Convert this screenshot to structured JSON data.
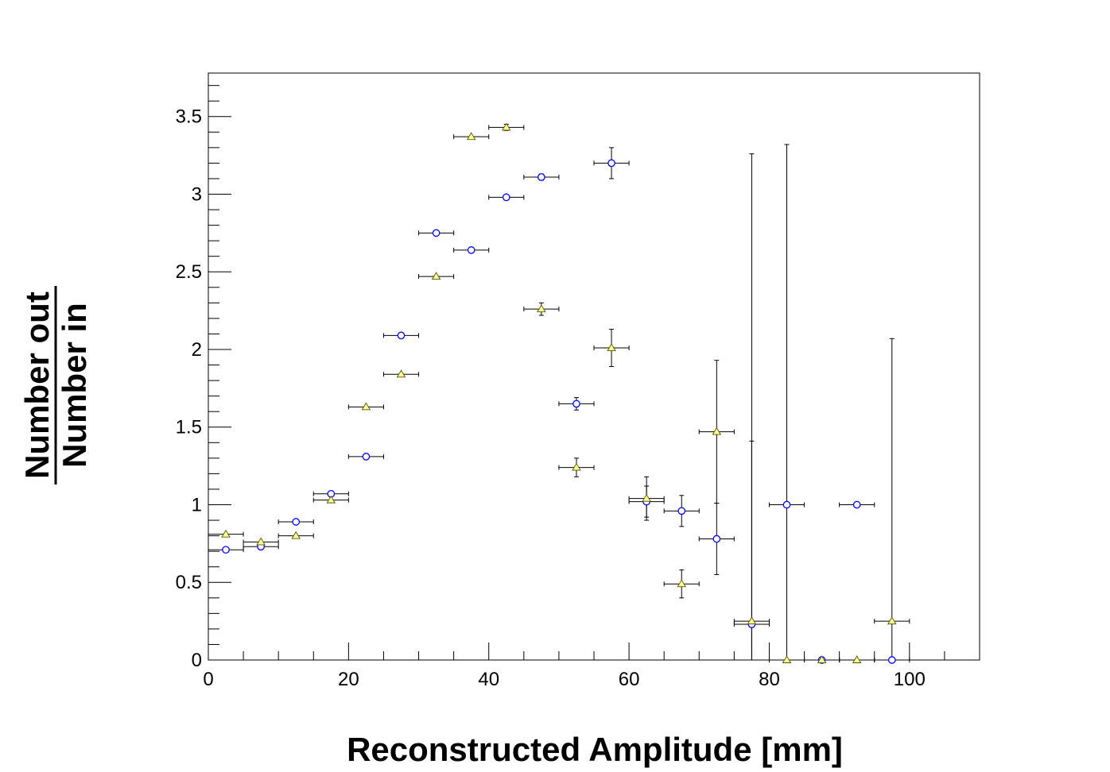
{
  "chart_data": {
    "type": "scatter",
    "xlabel": "Reconstructed Amplitude [mm]",
    "ylabel_numerator": "Number out",
    "ylabel_denominator": "Number in",
    "xlim": [
      0,
      110
    ],
    "ylim": [
      0,
      3.78
    ],
    "x_ticks": [
      0,
      20,
      40,
      60,
      80,
      100
    ],
    "y_ticks": [
      0,
      0.5,
      1,
      1.5,
      2,
      2.5,
      3,
      3.5
    ],
    "x_tick_labels": [
      "0",
      "20",
      "40",
      "60",
      "80",
      "100"
    ],
    "y_tick_labels": [
      "0",
      "0.5",
      "1",
      "1.5",
      "2",
      "2.5",
      "3",
      "3.5"
    ],
    "grid": false,
    "legend": "none",
    "bin_half_width": 2.5,
    "series": [
      {
        "marker": "open-circle",
        "color": "#0000ff",
        "points": [
          {
            "x": 2.5,
            "y": 0.71,
            "yerr": 0.0
          },
          {
            "x": 7.5,
            "y": 0.73,
            "yerr": 0.0
          },
          {
            "x": 12.5,
            "y": 0.89,
            "yerr": 0.0
          },
          {
            "x": 17.5,
            "y": 1.07,
            "yerr": 0.0
          },
          {
            "x": 22.5,
            "y": 1.31,
            "yerr": 0.0
          },
          {
            "x": 27.5,
            "y": 2.09,
            "yerr": 0.0
          },
          {
            "x": 32.5,
            "y": 2.75,
            "yerr": 0.0
          },
          {
            "x": 37.5,
            "y": 2.64,
            "yerr": 0.0
          },
          {
            "x": 42.5,
            "y": 2.98,
            "yerr": 0.0
          },
          {
            "x": 47.5,
            "y": 3.11,
            "yerr": 0.02
          },
          {
            "x": 52.5,
            "y": 1.65,
            "yerr": 0.04
          },
          {
            "x": 57.5,
            "y": 3.2,
            "yerr": 0.1
          },
          {
            "x": 62.5,
            "y": 1.02,
            "yerr": 0.1
          },
          {
            "x": 67.5,
            "y": 0.96,
            "yerr": 0.1
          },
          {
            "x": 72.5,
            "y": 0.78,
            "yerr": 0.23
          },
          {
            "x": 77.5,
            "y": 0.23,
            "yerr": 3.03,
            "yerr_low": 0.23
          },
          {
            "x": 82.5,
            "y": 1.0,
            "yerr": 2.32
          },
          {
            "x": 87.5,
            "y": 0.0,
            "yerr": 0.0
          },
          {
            "x": 92.5,
            "y": 1.0,
            "yerr": 0.0
          },
          {
            "x": 97.5,
            "y": 0.0,
            "yerr": 0.0
          }
        ]
      },
      {
        "marker": "open-triangle",
        "color": "#cccc33",
        "points": [
          {
            "x": 2.5,
            "y": 0.81,
            "yerr": 0.0
          },
          {
            "x": 7.5,
            "y": 0.76,
            "yerr": 0.0
          },
          {
            "x": 12.5,
            "y": 0.8,
            "yerr": 0.0
          },
          {
            "x": 17.5,
            "y": 1.03,
            "yerr": 0.0
          },
          {
            "x": 22.5,
            "y": 1.63,
            "yerr": 0.0
          },
          {
            "x": 27.5,
            "y": 1.84,
            "yerr": 0.0
          },
          {
            "x": 32.5,
            "y": 2.47,
            "yerr": 0.0
          },
          {
            "x": 37.5,
            "y": 3.37,
            "yerr": 0.0
          },
          {
            "x": 42.5,
            "y": 3.43,
            "yerr": 0.02
          },
          {
            "x": 47.5,
            "y": 2.26,
            "yerr": 0.04
          },
          {
            "x": 52.5,
            "y": 1.24,
            "yerr": 0.06
          },
          {
            "x": 57.5,
            "y": 2.01,
            "yerr": 0.12
          },
          {
            "x": 62.5,
            "y": 1.04,
            "yerr": 0.14
          },
          {
            "x": 67.5,
            "y": 0.49,
            "yerr": 0.09
          },
          {
            "x": 72.5,
            "y": 1.47,
            "yerr": 0.46
          },
          {
            "x": 77.5,
            "y": 0.25,
            "yerr": 1.16,
            "yerr_low": 0.25
          },
          {
            "x": 82.5,
            "y": 0.0,
            "yerr": 0.0
          },
          {
            "x": 87.5,
            "y": 0.0,
            "yerr": 0.0
          },
          {
            "x": 92.5,
            "y": 0.0,
            "yerr": 0.0
          },
          {
            "x": 97.5,
            "y": 0.25,
            "yerr": 1.82,
            "yerr_low": 0.25
          }
        ]
      }
    ]
  }
}
